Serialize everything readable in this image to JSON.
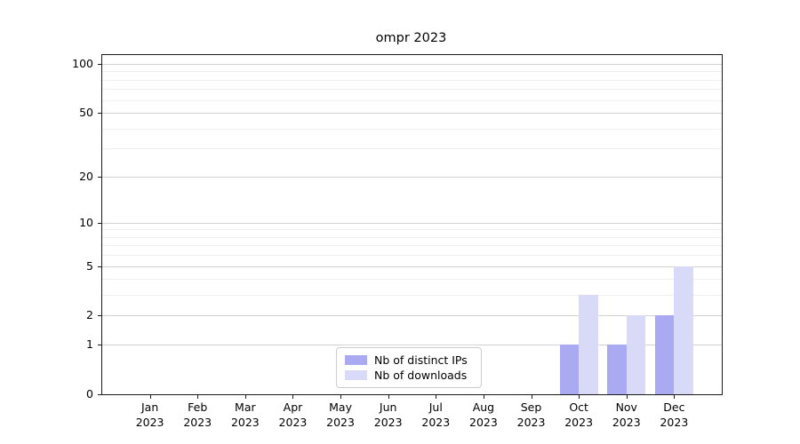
{
  "chart_data": {
    "type": "bar",
    "title": "ompr 2023",
    "categories": [
      "Jan 2023",
      "Feb 2023",
      "Mar 2023",
      "Apr 2023",
      "May 2023",
      "Jun 2023",
      "Jul 2023",
      "Aug 2023",
      "Sep 2023",
      "Oct 2023",
      "Nov 2023",
      "Dec 2023"
    ],
    "series": [
      {
        "name": "Nb of distinct IPs",
        "color": "#aaaaf2",
        "values": [
          0,
          0,
          0,
          0,
          0,
          0,
          0,
          0,
          0,
          1,
          1,
          2
        ]
      },
      {
        "name": "Nb of downloads",
        "color": "#d9d9f8",
        "values": [
          0,
          0,
          0,
          0,
          0,
          0,
          0,
          0,
          0,
          3,
          2,
          5
        ]
      }
    ],
    "xlabel": "",
    "ylabel": "",
    "yscale": "log1p",
    "ylim": [
      0,
      113
    ],
    "yticks": [
      0,
      1,
      2,
      5,
      10,
      20,
      50,
      100
    ],
    "major_gridlines": [
      1,
      2,
      5,
      10,
      20,
      50,
      100
    ],
    "minor_gridlines": [
      3,
      4,
      6,
      7,
      8,
      9,
      30,
      40,
      60,
      70,
      80,
      90
    ],
    "grid": "horizontal",
    "legend_position": "lower center"
  },
  "legend": {
    "items": [
      {
        "label": "Nb of distinct IPs"
      },
      {
        "label": "Nb of downloads"
      }
    ]
  }
}
